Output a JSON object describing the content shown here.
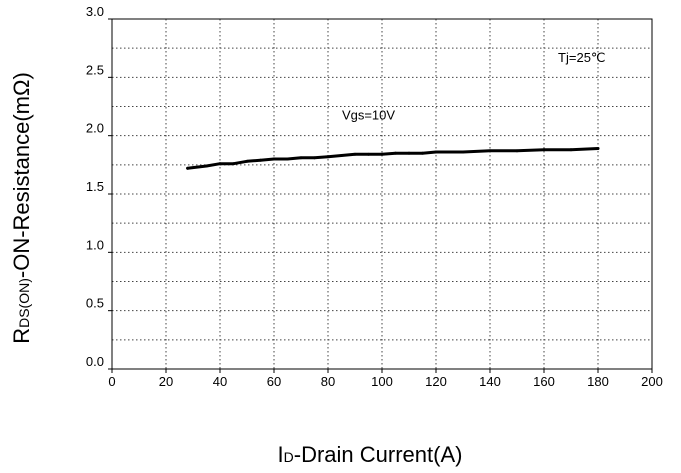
{
  "chart_data": {
    "type": "line",
    "x_axis": {
      "label_main": "I",
      "label_sub": "D",
      "label_rest": "-Drain Current(A)",
      "min": 0,
      "max": 200,
      "ticks": [
        0,
        20,
        40,
        60,
        80,
        100,
        120,
        140,
        160,
        180,
        200
      ],
      "tick_labels": [
        "0",
        "20",
        "40",
        "60",
        "80",
        "100",
        "120",
        "140",
        "160",
        "180",
        "200"
      ]
    },
    "y_axis": {
      "label_main": "R",
      "label_sub": "DS(ON)",
      "label_rest": "-ON-Resistance(mΩ)",
      "min": 0,
      "max": 3.0,
      "ticks": [
        0,
        0.5,
        1.0,
        1.5,
        2.0,
        2.5,
        3.0
      ],
      "tick_labels": [
        "0.0",
        "0.5",
        "1.0",
        "1.5",
        "2.0",
        "2.5",
        "3.0"
      ]
    },
    "grid": "dotted, major and minor",
    "series": [
      {
        "color": "#000000",
        "x": [
          28,
          35,
          40,
          45,
          50,
          55,
          60,
          65,
          70,
          75,
          80,
          85,
          90,
          95,
          100,
          105,
          110,
          115,
          120,
          130,
          140,
          150,
          160,
          170,
          180
        ],
        "y": [
          1.72,
          1.74,
          1.76,
          1.76,
          1.78,
          1.79,
          1.8,
          1.8,
          1.81,
          1.81,
          1.82,
          1.83,
          1.84,
          1.84,
          1.84,
          1.85,
          1.85,
          1.85,
          1.86,
          1.86,
          1.87,
          1.87,
          1.88,
          1.88,
          1.89
        ]
      }
    ],
    "annotations": [
      {
        "text": "Vgs=10V",
        "x": 95,
        "y": 2.14
      },
      {
        "text": "Tj=25℃",
        "x": 174,
        "y": 2.63
      }
    ]
  }
}
